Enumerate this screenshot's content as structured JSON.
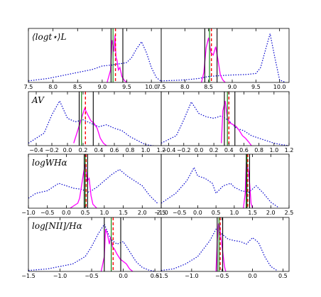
{
  "chart_data": [
    {
      "type": "line",
      "label": "⟨logt⋆⟩L",
      "xlim": [
        7.5,
        10.2
      ],
      "xticks": [
        "7.5",
        "8.0",
        "8.5",
        "9.0",
        "9.5",
        "10.0"
      ],
      "series": [
        {
          "style": "dotted-blue",
          "x": [
            7.5,
            7.9,
            8.2,
            8.5,
            8.8,
            9.0,
            9.2,
            9.3,
            9.4,
            9.5,
            9.6,
            9.7,
            9.8,
            9.9,
            10.0,
            10.1,
            10.2
          ],
          "y": [
            0.03,
            0.08,
            0.14,
            0.2,
            0.26,
            0.33,
            0.35,
            0.37,
            0.38,
            0.4,
            0.5,
            0.68,
            0.82,
            0.6,
            0.3,
            0.1,
            0.02
          ]
        },
        {
          "style": "solid-magenta",
          "x": [
            9.1,
            9.17,
            9.2,
            9.22,
            9.24,
            9.26,
            9.28,
            9.3,
            9.33,
            9.36,
            9.4,
            9.45,
            9.5
          ],
          "y": [
            0,
            0.25,
            0.85,
            0.75,
            0.62,
            0.95,
            0.5,
            0.45,
            0.25,
            0.3,
            0.12,
            0.04,
            0
          ]
        }
      ],
      "vlines": [
        {
          "x": 9.18,
          "color": "#000000"
        },
        {
          "x": 9.22,
          "color": "#008000"
        },
        {
          "x": 9.27,
          "color": "#ff0000"
        },
        {
          "x": 9.42,
          "color": "#000000"
        }
      ]
    },
    {
      "type": "line",
      "label": "",
      "xlim": [
        7.5,
        10.2
      ],
      "xticks": [
        "7.5",
        "8.0",
        "8.5",
        "9.0",
        "9.5",
        "10.0"
      ],
      "series": [
        {
          "style": "dotted-blue",
          "x": [
            7.5,
            8.0,
            8.3,
            8.5,
            8.8,
            9.0,
            9.3,
            9.5,
            9.6,
            9.7,
            9.8,
            9.9,
            10.0,
            10.1
          ],
          "y": [
            0.03,
            0.05,
            0.08,
            0.12,
            0.14,
            0.15,
            0.16,
            0.18,
            0.3,
            0.65,
            0.98,
            0.5,
            0.05,
            0.01
          ]
        },
        {
          "style": "solid-magenta",
          "x": [
            8.35,
            8.4,
            8.45,
            8.5,
            8.55,
            8.6,
            8.65,
            8.7,
            8.75,
            8.8,
            8.85
          ],
          "y": [
            0,
            0.2,
            0.7,
            0.9,
            0.6,
            0.55,
            0.72,
            0.45,
            0.15,
            0.05,
            0
          ]
        }
      ],
      "vlines": [
        {
          "x": 8.42,
          "color": "#000000"
        },
        {
          "x": 8.52,
          "color": "#008000"
        },
        {
          "x": 8.56,
          "color": "#ff0000"
        },
        {
          "x": 8.68,
          "color": "#000000"
        }
      ]
    },
    {
      "type": "line",
      "label": "AV",
      "xlim": [
        -0.5,
        1.2
      ],
      "xticks": [
        "−0.4",
        "−0.2",
        "0.0",
        "0.2",
        "0.4",
        "0.6",
        "0.8",
        "1.0",
        "1.2"
      ],
      "series": [
        {
          "style": "dotted-blue",
          "x": [
            -0.5,
            -0.3,
            -0.2,
            -0.1,
            0.0,
            0.1,
            0.2,
            0.3,
            0.4,
            0.5,
            0.6,
            0.7,
            0.8,
            0.9,
            1.0,
            1.1
          ],
          "y": [
            0.05,
            0.25,
            0.62,
            0.9,
            0.55,
            0.48,
            0.52,
            0.45,
            0.38,
            0.42,
            0.35,
            0.3,
            0.18,
            0.1,
            0.02,
            0
          ]
        },
        {
          "style": "solid-magenta",
          "x": [
            0.08,
            0.12,
            0.15,
            0.18,
            0.22,
            0.26,
            0.3,
            0.34,
            0.38,
            0.42,
            0.46,
            0.5
          ],
          "y": [
            0.05,
            0.25,
            0.4,
            0.55,
            0.75,
            0.62,
            0.5,
            0.45,
            0.35,
            0.15,
            0.05,
            0
          ]
        }
      ],
      "vlines": [
        {
          "x": 0.15,
          "color": "#000000"
        },
        {
          "x": 0.18,
          "color": "#008000"
        },
        {
          "x": 0.23,
          "color": "#ff0000"
        },
        {
          "x": 0.33,
          "color": "#000000"
        }
      ]
    },
    {
      "type": "line",
      "label": "",
      "xlim": [
        -0.5,
        1.2
      ],
      "xticks": [
        "−0.4",
        "−0.2",
        "0.0",
        "0.2",
        "0.4",
        "0.6",
        "0.8",
        "1.0",
        "1.2"
      ],
      "series": [
        {
          "style": "dotted-blue",
          "x": [
            -0.5,
            -0.3,
            -0.2,
            -0.1,
            0.0,
            0.1,
            0.2,
            0.3,
            0.4,
            0.5,
            0.6,
            0.7,
            0.8,
            0.9,
            1.0,
            1.1,
            1.2
          ],
          "y": [
            0.05,
            0.2,
            0.52,
            0.88,
            0.65,
            0.58,
            0.55,
            0.6,
            0.5,
            0.35,
            0.3,
            0.2,
            0.15,
            0.1,
            0.05,
            0.02,
            0
          ]
        },
        {
          "style": "solid-magenta",
          "x": [
            0.3,
            0.32,
            0.35,
            0.38,
            0.42,
            0.46,
            0.5,
            0.54,
            0.58,
            0.62,
            0.66,
            0.7
          ],
          "y": [
            0.05,
            0.7,
            0.9,
            0.55,
            0.45,
            0.42,
            0.38,
            0.3,
            0.2,
            0.15,
            0.08,
            0
          ]
        }
      ],
      "vlines": [
        {
          "x": 0.34,
          "color": "#000000"
        },
        {
          "x": 0.38,
          "color": "#008000"
        },
        {
          "x": 0.4,
          "color": "#ff0000"
        },
        {
          "x": 0.48,
          "color": "#000000"
        }
      ]
    },
    {
      "type": "line",
      "label": "logWHα",
      "xlim": [
        -1.0,
        2.5
      ],
      "xticks": [
        "−1.0",
        "−0.5",
        "0.0",
        "0.5",
        "1.0",
        "1.5",
        "2.0",
        "2.5"
      ],
      "series": [
        {
          "style": "dotted-blue",
          "x": [
            -1.0,
            -0.8,
            -0.5,
            -0.2,
            0.0,
            0.2,
            0.4,
            0.6,
            0.8,
            1.0,
            1.2,
            1.4,
            1.6,
            1.8,
            2.0,
            2.2,
            2.4
          ],
          "y": [
            0.2,
            0.3,
            0.35,
            0.5,
            0.45,
            0.4,
            0.38,
            0.32,
            0.42,
            0.55,
            0.68,
            0.78,
            0.65,
            0.55,
            0.45,
            0.25,
            0.1
          ]
        },
        {
          "style": "solid-magenta",
          "x": [
            0.1,
            0.2,
            0.3,
            0.35,
            0.4,
            0.45,
            0.5,
            0.55,
            0.6,
            0.65,
            0.7,
            0.8
          ],
          "y": [
            0,
            0.05,
            0.1,
            0.2,
            0.45,
            0.7,
            0.9,
            0.55,
            0.6,
            0.25,
            0.08,
            0
          ]
        }
      ],
      "vlines": [
        {
          "x": 0.47,
          "color": "#000000"
        },
        {
          "x": 0.5,
          "color": "#008000"
        },
        {
          "x": 0.52,
          "color": "#ff0000"
        },
        {
          "x": 0.56,
          "color": "#000000"
        }
      ]
    },
    {
      "type": "line",
      "label": "",
      "xlim": [
        -1.0,
        2.5
      ],
      "xticks": [
        "−1.0",
        "−0.5",
        "0.0",
        "0.5",
        "1.0",
        "1.5",
        "2.0",
        "2.5"
      ],
      "series": [
        {
          "style": "dotted-blue",
          "x": [
            -1.0,
            -0.6,
            -0.3,
            -0.1,
            0.0,
            0.2,
            0.4,
            0.5,
            0.7,
            0.9,
            1.0,
            1.2,
            1.4,
            1.6,
            1.8,
            2.0,
            2.2
          ],
          "y": [
            0.1,
            0.3,
            0.55,
            0.82,
            0.65,
            0.6,
            0.5,
            0.3,
            0.45,
            0.5,
            0.42,
            0.35,
            0.32,
            0.45,
            0.3,
            0.12,
            0.02
          ]
        },
        {
          "style": "solid-magenta",
          "x": [
            1.25,
            1.3,
            1.33,
            1.36,
            1.4,
            1.43,
            1.46,
            1.5
          ],
          "y": [
            0,
            0.3,
            0.92,
            0.85,
            0.7,
            0.4,
            0.1,
            0
          ]
        }
      ],
      "vlines": [
        {
          "x": 1.33,
          "color": "#000000"
        },
        {
          "x": 1.35,
          "color": "#008000"
        },
        {
          "x": 1.37,
          "color": "#ff0000"
        },
        {
          "x": 1.42,
          "color": "#000000"
        }
      ]
    },
    {
      "type": "line",
      "label": "log[NII]/Hα",
      "xlim": [
        -1.5,
        0.6
      ],
      "xticks": [
        "−1.5",
        "−1.0",
        "−0.5",
        "0.0",
        "0.5"
      ],
      "series": [
        {
          "style": "dotted-blue",
          "x": [
            -1.5,
            -1.2,
            -1.0,
            -0.8,
            -0.6,
            -0.5,
            -0.4,
            -0.3,
            -0.2,
            -0.1,
            0.0,
            0.1,
            0.2,
            0.3,
            0.4,
            0.5
          ],
          "y": [
            0.02,
            0.05,
            0.1,
            0.15,
            0.3,
            0.5,
            0.75,
            0.95,
            0.65,
            0.55,
            0.6,
            0.4,
            0.2,
            0.08,
            0.03,
            0
          ]
        },
        {
          "style": "solid-magenta",
          "x": [
            -0.35,
            -0.3,
            -0.28,
            -0.25,
            -0.22,
            -0.2,
            -0.17,
            -0.14,
            -0.1,
            -0.05,
            0.0,
            0.05,
            0.1,
            0.15
          ],
          "y": [
            0,
            0.3,
            0.85,
            0.75,
            0.55,
            0.7,
            0.5,
            0.45,
            0.35,
            0.25,
            0.2,
            0.15,
            0.05,
            0
          ]
        }
      ],
      "vlines": [
        {
          "x": -0.3,
          "color": "#000000"
        },
        {
          "x": -0.19,
          "color": "#008000"
        },
        {
          "x": -0.16,
          "color": "#ff0000"
        },
        {
          "x": -0.04,
          "color": "#000000"
        }
      ]
    },
    {
      "type": "line",
      "label": "",
      "xlim": [
        -1.5,
        0.6
      ],
      "xticks": [
        "−1.5",
        "−1.0",
        "−0.5",
        "0.0",
        "0.5"
      ],
      "series": [
        {
          "style": "dotted-blue",
          "x": [
            -1.5,
            -1.3,
            -1.1,
            -0.9,
            -0.7,
            -0.6,
            -0.5,
            -0.4,
            -0.3,
            -0.2,
            -0.1,
            0.0,
            0.1,
            0.2,
            0.3,
            0.4
          ],
          "y": [
            0.02,
            0.05,
            0.15,
            0.3,
            0.62,
            0.85,
            0.75,
            0.65,
            0.62,
            0.6,
            0.55,
            0.68,
            0.58,
            0.3,
            0.1,
            0.02
          ]
        },
        {
          "style": "solid-magenta",
          "x": [
            -0.6,
            -0.58,
            -0.56,
            -0.54,
            -0.52,
            -0.5,
            -0.48,
            -0.46,
            -0.44
          ],
          "y": [
            0,
            0.6,
            0.95,
            0.92,
            0.7,
            0.5,
            0.3,
            0.1,
            0
          ]
        }
      ],
      "vlines": [
        {
          "x": -0.58,
          "color": "#000000"
        },
        {
          "x": -0.55,
          "color": "#008000"
        },
        {
          "x": -0.53,
          "color": "#ff0000"
        },
        {
          "x": -0.49,
          "color": "#000000"
        }
      ]
    }
  ],
  "colors": {
    "dotted": "#0000cc",
    "magenta": "#ff00ff",
    "green": "#008000",
    "red": "#ff0000",
    "black": "#000000"
  }
}
